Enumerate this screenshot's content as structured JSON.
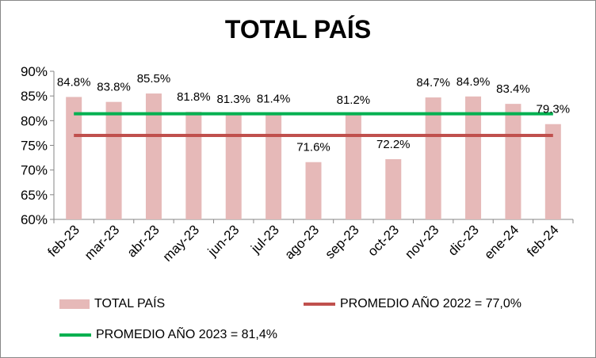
{
  "chart_data": {
    "type": "bar",
    "title": "TOTAL PAÍS",
    "categories": [
      "feb-23",
      "mar-23",
      "abr-23",
      "may-23",
      "jun-23",
      "jul-23",
      "ago-23",
      "sep-23",
      "oct-23",
      "nov-23",
      "dic-23",
      "ene-24",
      "feb-24"
    ],
    "series": [
      {
        "name": "TOTAL PAÍS",
        "type": "bar",
        "color": "#e6b9b8",
        "values": [
          84.8,
          83.8,
          85.5,
          81.8,
          81.3,
          81.4,
          71.6,
          81.2,
          72.2,
          84.7,
          84.9,
          83.4,
          79.3
        ],
        "labels": [
          "84.8%",
          "83.8%",
          "85.5%",
          "81.8%",
          "81.3%",
          "81.4%",
          "71.6%",
          "81.2%",
          "72.2%",
          "84.7%",
          "84.9%",
          "83.4%",
          "79.3%"
        ]
      },
      {
        "name": "PROMEDIO AÑO 2022 = 77,0%",
        "type": "line",
        "color": "#c0504d",
        "value": 77.0
      },
      {
        "name": "PROMEDIO AÑO 2023 = 81,4%",
        "type": "line",
        "color": "#00b050",
        "value": 81.4
      }
    ],
    "ylim": [
      60,
      90
    ],
    "yticks": [
      "60%",
      "65%",
      "70%",
      "75%",
      "80%",
      "85%",
      "90%"
    ],
    "grid": false,
    "legend_position": "bottom"
  }
}
